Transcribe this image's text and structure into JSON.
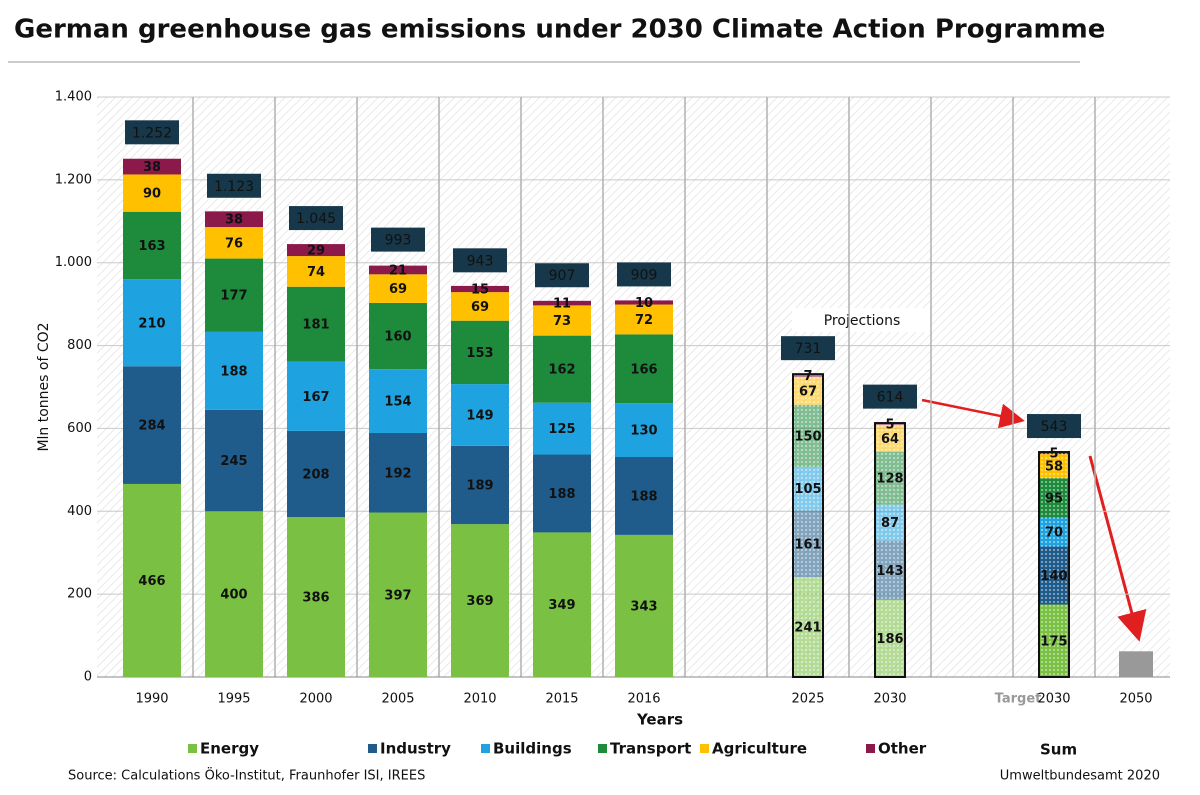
{
  "chart_data": {
    "type": "stacked_bar",
    "title": "German greenhouse gas emissions under 2030 Climate Action Programme",
    "y_label": "Mln tonnes of CO2",
    "x_label": "Years",
    "categories": [
      "1990",
      "1995",
      "2000",
      "2005",
      "2010",
      "2015",
      "2016",
      null,
      "2025",
      "2030",
      null,
      "2030",
      "2050"
    ],
    "projected": [
      false,
      false,
      false,
      false,
      false,
      false,
      false,
      null,
      true,
      true,
      null,
      true,
      null
    ],
    "series": [
      {
        "name": "Energy",
        "color": "#7ac143",
        "values": [
          466,
          400,
          386,
          397,
          369,
          349,
          343,
          null,
          241,
          186,
          null,
          175,
          null
        ]
      },
      {
        "name": "Industry",
        "color": "#1f5c8b",
        "values": [
          284,
          245,
          208,
          192,
          189,
          188,
          188,
          null,
          161,
          143,
          null,
          140,
          null
        ]
      },
      {
        "name": "Buildings",
        "color": "#1fa3e0",
        "values": [
          210,
          188,
          167,
          154,
          149,
          125,
          130,
          null,
          105,
          87,
          null,
          70,
          null
        ]
      },
      {
        "name": "Transport",
        "color": "#1e8b3c",
        "values": [
          163,
          177,
          181,
          160,
          153,
          162,
          166,
          null,
          150,
          128,
          null,
          95,
          null
        ]
      },
      {
        "name": "Agriculture",
        "color": "#ffc000",
        "values": [
          90,
          76,
          74,
          69,
          69,
          73,
          72,
          null,
          67,
          64,
          null,
          58,
          null
        ]
      },
      {
        "name": "Other",
        "color": "#8b1a4a",
        "values": [
          38,
          38,
          29,
          21,
          15,
          11,
          10,
          null,
          7,
          5,
          null,
          5,
          null
        ]
      }
    ],
    "totals": {
      "name": "Sum",
      "color": "#17384a",
      "values": [
        1252,
        1123,
        1045,
        993,
        943,
        907,
        909,
        null,
        731,
        614,
        null,
        543,
        null
      ],
      "value_labels": [
        "1.252",
        "1.123",
        "1.045",
        "993",
        "943",
        "907",
        "909",
        null,
        "731",
        "614",
        null,
        "543",
        null
      ]
    },
    "bar_2050": {
      "value": 62,
      "color": "#999999"
    },
    "ylim": [
      0,
      1400
    ],
    "yticks": [
      0,
      200,
      400,
      600,
      800,
      {
        "value": 1000,
        "label": "1.000"
      },
      {
        "value": 1200,
        "label": "1.200"
      },
      {
        "value": 1400,
        "label": "1.400"
      }
    ],
    "grid": true,
    "annotations": {
      "projections": "Projections",
      "target": "Target",
      "source": "Source: Calculations Öko-Institut, Fraunhofer ISI, IREES",
      "credit": "Umweltbundesamt 2020"
    }
  }
}
